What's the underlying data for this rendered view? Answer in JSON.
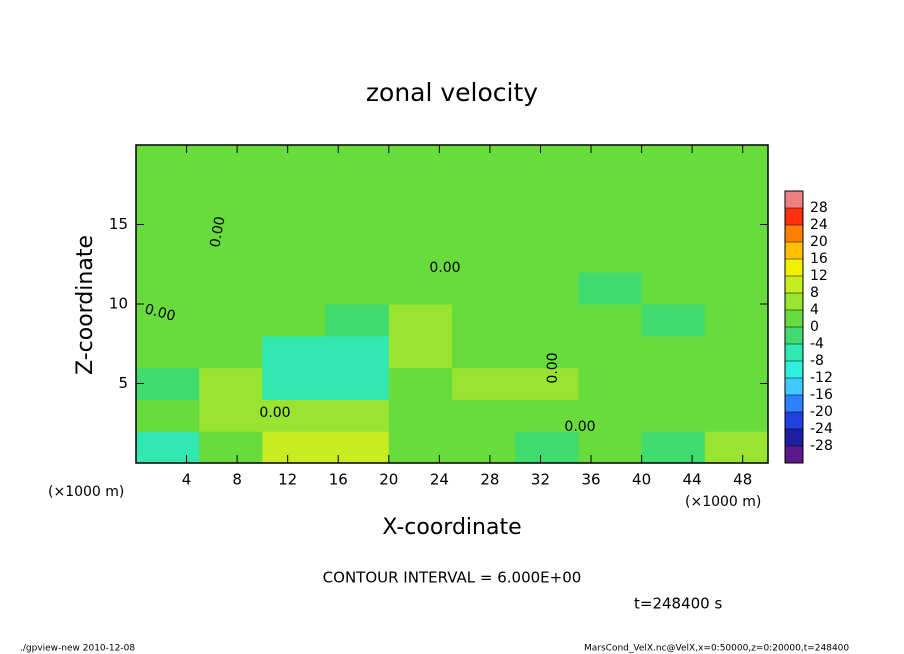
{
  "chart_data": {
    "type": "contour",
    "title": "zonal velocity",
    "xlabel": "X-coordinate",
    "ylabel": "Z-coordinate",
    "x_unit_left": "(×1000 m)",
    "x_unit_right": "(×1000 m)",
    "xlim": [
      0,
      50
    ],
    "ylim": [
      0,
      20
    ],
    "xticks": [
      4,
      8,
      12,
      16,
      20,
      24,
      28,
      32,
      36,
      40,
      44,
      48
    ],
    "yticks": [
      5,
      10,
      15
    ],
    "x": [
      2.5,
      7.5,
      12.5,
      17.5,
      22.5,
      27.5,
      32.5,
      37.5,
      42.5,
      47.5
    ],
    "z": [
      1,
      3,
      5,
      7,
      9,
      11,
      13,
      15,
      17,
      19
    ],
    "values": [
      [
        -6,
        3,
        8,
        10,
        2,
        0,
        -4,
        2,
        -2,
        6
      ],
      [
        2,
        4,
        5,
        4,
        0,
        1,
        2,
        2,
        1,
        2
      ],
      [
        -4,
        4,
        -6,
        -8,
        2,
        4,
        7,
        3,
        3,
        2
      ],
      [
        3,
        2,
        -8,
        -8,
        5,
        3,
        2,
        2,
        3,
        2
      ],
      [
        2,
        1,
        0,
        -2,
        6,
        2,
        1,
        0,
        -1,
        0
      ],
      [
        1,
        1,
        2,
        1,
        2,
        1,
        0,
        -1,
        1,
        2
      ],
      [
        2,
        2,
        2,
        1,
        1,
        1,
        1,
        0,
        1,
        1
      ],
      [
        2,
        2,
        2,
        2,
        2,
        2,
        2,
        2,
        2,
        2
      ],
      [
        2,
        2,
        2,
        2,
        2,
        2,
        2,
        2,
        2,
        2
      ],
      [
        2,
        2,
        2,
        2,
        2,
        2,
        2,
        2,
        2,
        2
      ]
    ],
    "contour_labels": [
      "0.00",
      "0.00",
      "0.00",
      "0.00",
      "0.00",
      "0.00"
    ],
    "colorbar": {
      "clim": [
        -32,
        32
      ],
      "ticks": [
        28,
        24,
        20,
        16,
        12,
        8,
        4,
        0,
        -4,
        -8,
        -12,
        -16,
        -20,
        -24,
        -28
      ],
      "colors": [
        "#5a1a8c",
        "#1e1ea0",
        "#2040e0",
        "#2f7fff",
        "#40c8ff",
        "#30f0e0",
        "#30e8b0",
        "#40dc70",
        "#68dc3c",
        "#98e430",
        "#c8ec20",
        "#f0f000",
        "#ffc000",
        "#ff8000",
        "#ff3010",
        "#f08080"
      ]
    },
    "contour_interval_text": "CONTOUR INTERVAL = 6.000E+00",
    "time_text": "t=248400 s",
    "footer_left": "./gpview-new  2010-12-08",
    "footer_right": "MarsCond_VelX.nc@VelX,x=0:50000,z=0:20000,t=248400"
  }
}
